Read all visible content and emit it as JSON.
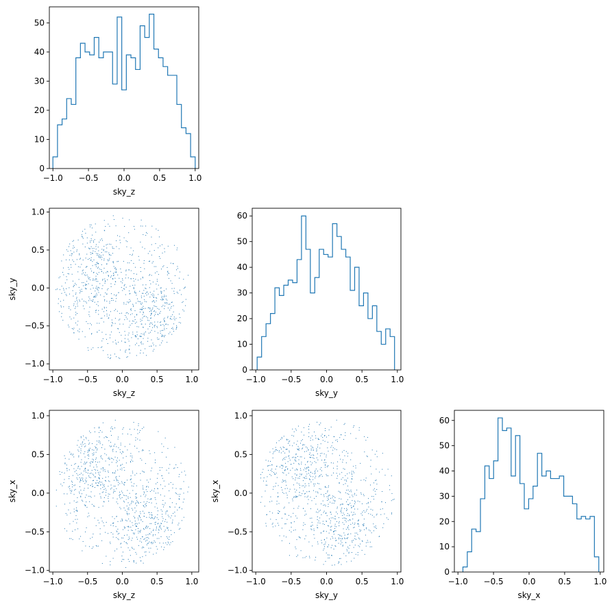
{
  "colors": {
    "series": "#1f77b4",
    "axis": "#000000",
    "background": "#ffffff"
  },
  "chart_data": [
    {
      "id": "hist-sky_z",
      "type": "histogram",
      "xlabel": "sky_z",
      "xlim": [
        -1.05,
        1.05
      ],
      "ylim": [
        0,
        55.5
      ],
      "xticks": [
        -1.0,
        -0.5,
        0.0,
        0.5,
        1.0
      ],
      "xtick_labels": [
        "−1.0",
        "−0.5",
        "0.0",
        "0.5",
        "1.0"
      ],
      "yticks": [
        0,
        10,
        20,
        30,
        40,
        50
      ],
      "ytick_labels": [
        "0",
        "10",
        "20",
        "30",
        "40",
        "50"
      ],
      "bin_range": [
        -1.0,
        1.0
      ],
      "counts": [
        4,
        15,
        17,
        24,
        22,
        38,
        43,
        40,
        39,
        45,
        38,
        40,
        40,
        29,
        52,
        27,
        39,
        38,
        34,
        49,
        45,
        53,
        41,
        38,
        35,
        32,
        32,
        22,
        14,
        12,
        4
      ]
    },
    {
      "id": "scatter-sky_z-sky_y",
      "type": "scatter",
      "xlabel": "sky_z",
      "ylabel": "sky_y",
      "xlim": [
        -1.05,
        1.1
      ],
      "ylim": [
        -1.08,
        1.05
      ],
      "xticks": [
        -1.0,
        -0.5,
        0.0,
        0.5,
        1.0
      ],
      "xtick_labels": [
        "−1.0",
        "−0.5",
        "0.0",
        "0.5",
        "1.0"
      ],
      "yticks": [
        -1.0,
        -0.5,
        0.0,
        0.5,
        1.0
      ],
      "ytick_labels": [
        "−1.0",
        "−0.5",
        "0.0",
        "0.5",
        "1.0"
      ],
      "marker_size": 1,
      "point_count": 1000,
      "cluster_centers": [
        [
          -0.45,
          0.15
        ],
        [
          0.4,
          -0.35
        ]
      ]
    },
    {
      "id": "hist-sky_y",
      "type": "histogram",
      "xlabel": "sky_y",
      "xlim": [
        -1.05,
        1.05
      ],
      "ylim": [
        0,
        63
      ],
      "xticks": [
        -1.0,
        -0.5,
        0.0,
        0.5,
        1.0
      ],
      "xtick_labels": [
        "−1.0",
        "−0.5",
        "0.0",
        "0.5",
        "1.0"
      ],
      "yticks": [
        0,
        10,
        20,
        30,
        40,
        50,
        60
      ],
      "ytick_labels": [
        "0",
        "10",
        "20",
        "30",
        "40",
        "50",
        "60"
      ],
      "bin_range": [
        -0.98,
        0.96
      ],
      "counts": [
        5,
        13,
        18,
        22,
        32,
        29,
        33,
        35,
        34,
        43,
        60,
        47,
        30,
        36,
        47,
        45,
        44,
        57,
        52,
        47,
        44,
        31,
        40,
        25,
        30,
        20,
        25,
        15,
        10,
        16,
        13
      ]
    },
    {
      "id": "scatter-sky_z-sky_x",
      "type": "scatter",
      "xlabel": "sky_z",
      "ylabel": "sky_x",
      "xlim": [
        -1.05,
        1.1
      ],
      "ylim": [
        -1.02,
        1.07
      ],
      "xticks": [
        -1.0,
        -0.5,
        0.0,
        0.5,
        1.0
      ],
      "xtick_labels": [
        "−1.0",
        "−0.5",
        "0.0",
        "0.5",
        "1.0"
      ],
      "yticks": [
        -1.0,
        -0.5,
        0.0,
        0.5,
        1.0
      ],
      "ytick_labels": [
        "−1.0",
        "−0.5",
        "0.0",
        "0.5",
        "1.0"
      ],
      "marker_size": 1,
      "point_count": 1000,
      "cluster_centers": [
        [
          -0.4,
          0.3
        ],
        [
          0.35,
          -0.4
        ]
      ]
    },
    {
      "id": "scatter-sky_y-sky_x",
      "type": "scatter",
      "xlabel": "sky_y",
      "ylabel": "sky_x",
      "xlim": [
        -1.05,
        1.05
      ],
      "ylim": [
        -1.02,
        1.07
      ],
      "xticks": [
        -1.0,
        -0.5,
        0.0,
        0.5,
        1.0
      ],
      "xtick_labels": [
        "−1.0",
        "−0.5",
        "0.0",
        "0.5",
        "1.0"
      ],
      "yticks": [
        -1.0,
        -0.5,
        0.0,
        0.5,
        1.0
      ],
      "ytick_labels": [
        "−1.0",
        "−0.5",
        "0.0",
        "0.5",
        "1.0"
      ],
      "marker_size": 1,
      "point_count": 1000,
      "cluster_centers": [
        [
          -0.35,
          0.35
        ],
        [
          0.3,
          -0.4
        ]
      ]
    },
    {
      "id": "hist-sky_x",
      "type": "histogram",
      "xlabel": "sky_x",
      "xlim": [
        -1.05,
        1.05
      ],
      "ylim": [
        0,
        64
      ],
      "xticks": [
        -1.0,
        -0.5,
        0.0,
        0.5,
        1.0
      ],
      "xtick_labels": [
        "−1.0",
        "−0.5",
        "0.0",
        "0.5",
        "1.0"
      ],
      "yticks": [
        0,
        10,
        20,
        30,
        40,
        50,
        60
      ],
      "ytick_labels": [
        "0",
        "10",
        "20",
        "30",
        "40",
        "50",
        "60"
      ],
      "bin_range": [
        -0.93,
        0.98
      ],
      "counts": [
        2,
        8,
        17,
        16,
        29,
        42,
        37,
        44,
        61,
        56,
        57,
        38,
        54,
        35,
        25,
        29,
        34,
        47,
        38,
        40,
        37,
        37,
        38,
        30,
        30,
        27,
        21,
        22,
        21,
        22,
        6
      ]
    }
  ]
}
